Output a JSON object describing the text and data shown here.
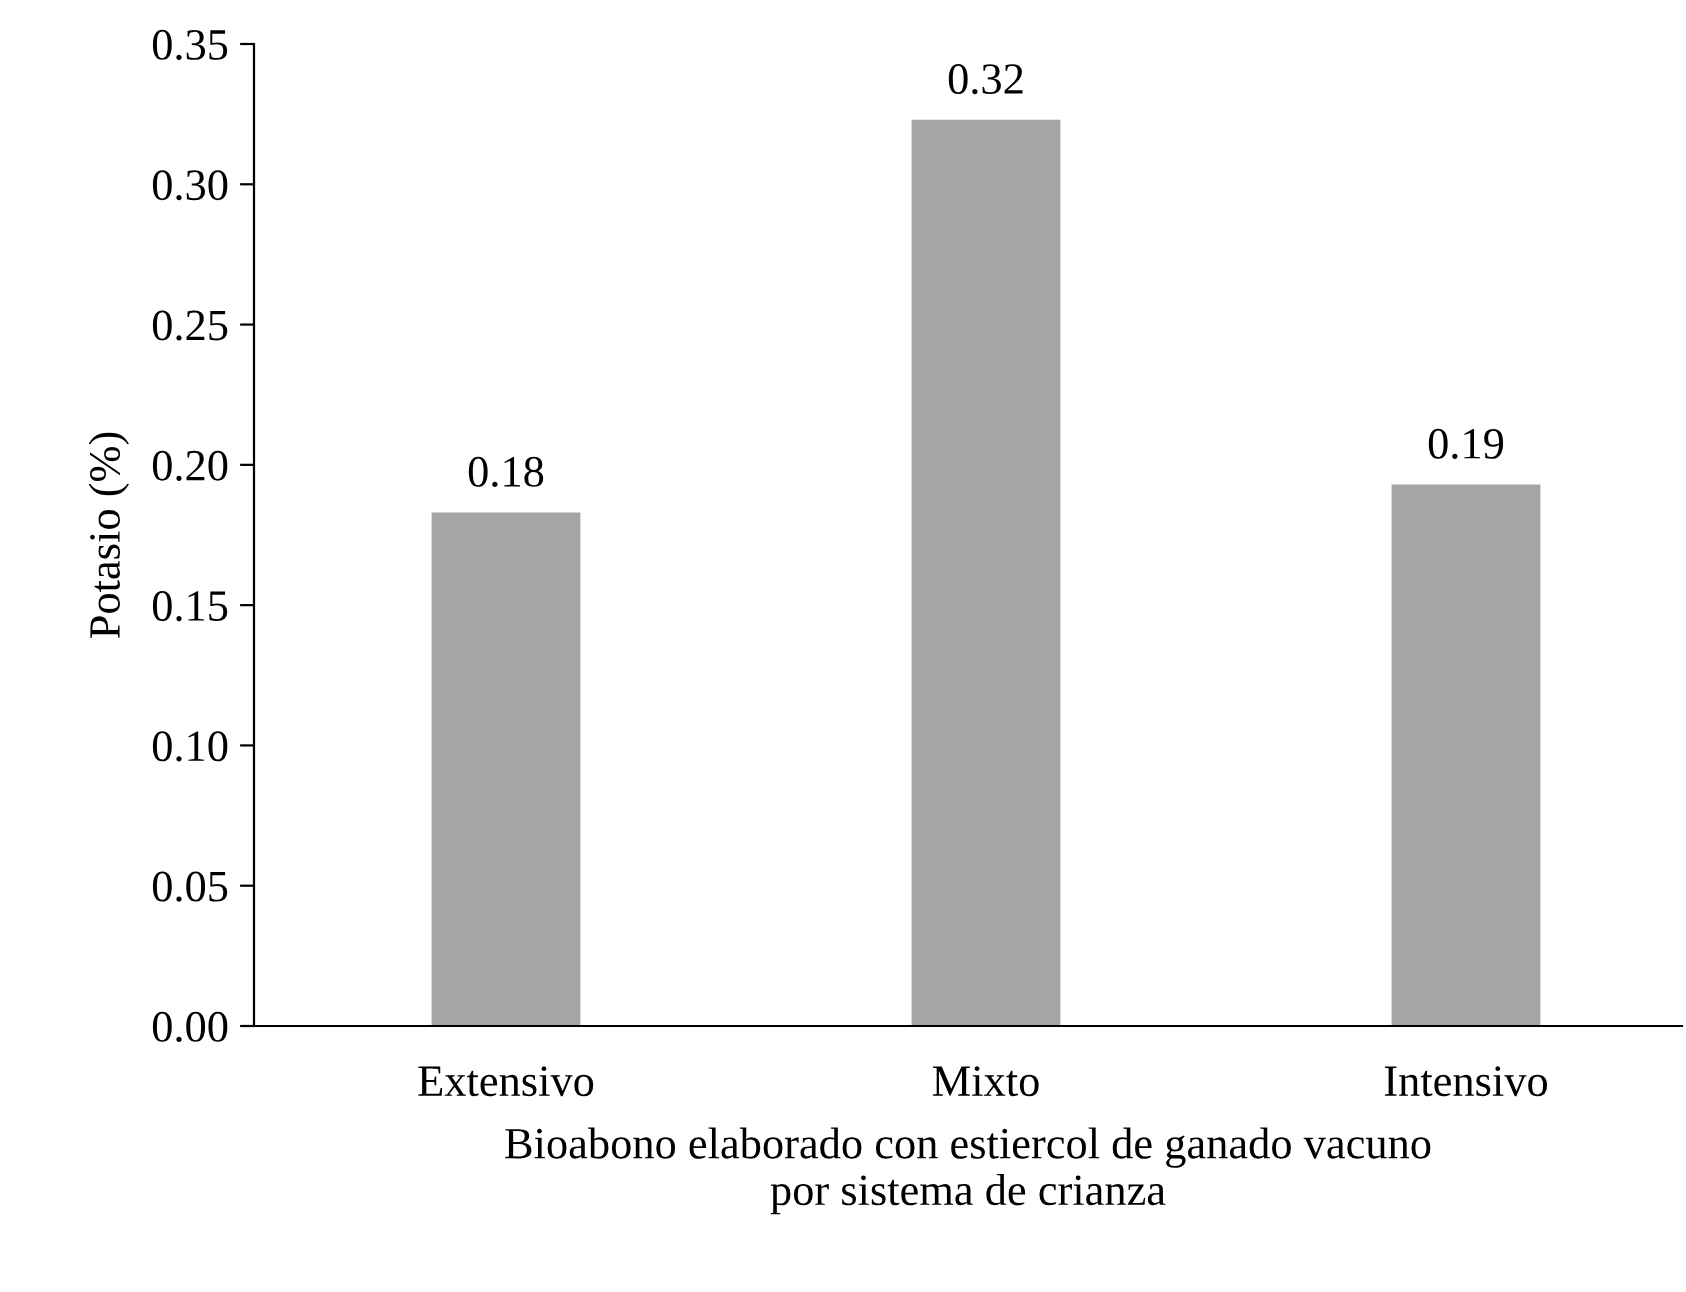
{
  "chart_data": {
    "type": "bar",
    "categories": [
      "Extensivo",
      "Mixto",
      "Intensivo"
    ],
    "values": [
      0.183,
      0.323,
      0.193
    ],
    "value_labels": [
      "0.18",
      "0.32",
      "0.19"
    ],
    "color": "#a5a5a5",
    "xlabel": "Bioabono elaborado con estiercol de ganado vacuno\npor sistema de crianza",
    "ylabel": "Potasio (%)",
    "ylim": [
      0,
      0.35
    ],
    "yticks": [
      {
        "value": 0,
        "label": "0.00"
      },
      {
        "value": 0.05,
        "label": "0.05"
      },
      {
        "value": 0.1,
        "label": "0.10"
      },
      {
        "value": 0.15,
        "label": "0.15"
      },
      {
        "value": 0.2,
        "label": "0.20"
      },
      {
        "value": 0.25,
        "label": "0.25"
      },
      {
        "value": 0.3,
        "label": "0.30"
      },
      {
        "value": 0.35,
        "label": "0.35"
      }
    ],
    "grid": false,
    "legend": false
  }
}
